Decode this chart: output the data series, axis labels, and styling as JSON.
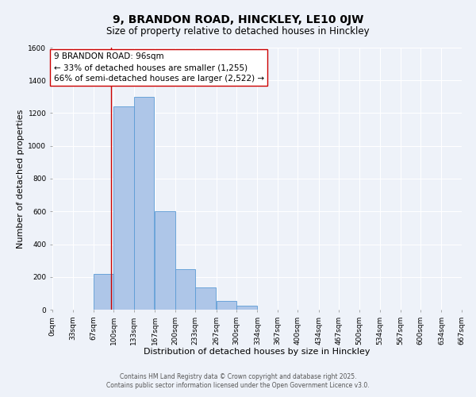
{
  "title": "9, BRANDON ROAD, HINCKLEY, LE10 0JW",
  "subtitle": "Size of property relative to detached houses in Hinckley",
  "xlabel": "Distribution of detached houses by size in Hinckley",
  "ylabel": "Number of detached properties",
  "footer_line1": "Contains HM Land Registry data © Crown copyright and database right 2025.",
  "footer_line2": "Contains public sector information licensed under the Open Government Licence v3.0.",
  "bin_edges": [
    0,
    33,
    67,
    100,
    133,
    167,
    200,
    233,
    267,
    300,
    334,
    367,
    400,
    434,
    467,
    500,
    534,
    567,
    600,
    634,
    667
  ],
  "bar_heights": [
    0,
    0,
    220,
    1240,
    1300,
    600,
    245,
    135,
    55,
    25,
    0,
    0,
    0,
    0,
    0,
    0,
    0,
    0,
    0,
    0
  ],
  "bar_color": "#aec6e8",
  "bar_edge_color": "#5b9bd5",
  "property_line_x": 96,
  "property_line_color": "#cc0000",
  "annotation_line1": "9 BRANDON ROAD: 96sqm",
  "annotation_line2": "← 33% of detached houses are smaller (1,255)",
  "annotation_line3": "66% of semi-detached houses are larger (2,522) →",
  "annotation_box_color": "#ffffff",
  "annotation_box_edge_color": "#cc0000",
  "ylim": [
    0,
    1600
  ],
  "yticks": [
    0,
    200,
    400,
    600,
    800,
    1000,
    1200,
    1400,
    1600
  ],
  "xtick_labels": [
    "0sqm",
    "33sqm",
    "67sqm",
    "100sqm",
    "133sqm",
    "167sqm",
    "200sqm",
    "233sqm",
    "267sqm",
    "300sqm",
    "334sqm",
    "367sqm",
    "400sqm",
    "434sqm",
    "467sqm",
    "500sqm",
    "534sqm",
    "567sqm",
    "600sqm",
    "634sqm",
    "667sqm"
  ],
  "background_color": "#eef2f9",
  "grid_color": "#ffffff",
  "title_fontsize": 10,
  "subtitle_fontsize": 8.5,
  "axis_label_fontsize": 8,
  "tick_fontsize": 6.5,
  "annotation_fontsize": 7.5,
  "footer_fontsize": 5.5
}
